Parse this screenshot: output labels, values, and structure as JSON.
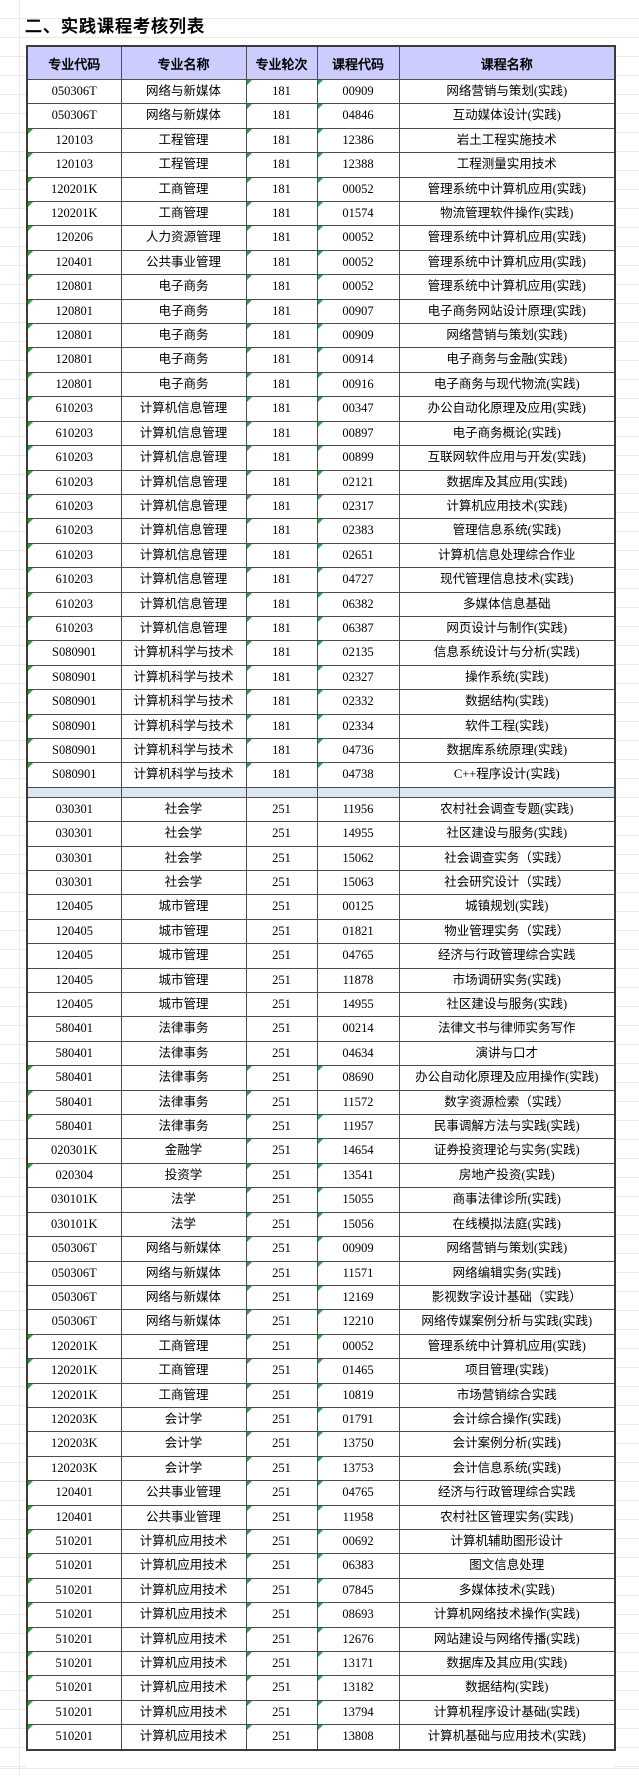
{
  "title": "二、实践课程考核列表",
  "colors": {
    "header_bg": "#ccccff",
    "separator_bg": "#dce6f1",
    "table_border": "#4d4d4d",
    "corner_indicator_green": "#2f9e44",
    "margin_gridline": "#e9e9e9"
  },
  "table": {
    "headers": [
      "专业代码",
      "专业名称",
      "专业轮次",
      "课程代码",
      "课程名称"
    ],
    "sections": [
      {
        "name": "round-181",
        "rows": [
          {
            "c": [
              "050306T",
              "网络与新媒体",
              "181",
              "00909",
              "网络营销与策划(实践)"
            ],
            "tri": [
              3,
              4
            ]
          },
          {
            "c": [
              "050306T",
              "网络与新媒体",
              "181",
              "04846",
              "互动媒体设计(实践)"
            ],
            "tri": [
              3,
              4
            ]
          },
          {
            "c": [
              "120103",
              "工程管理",
              "181",
              "12386",
              "岩土工程实施技术"
            ],
            "tri": [
              1,
              3,
              4
            ]
          },
          {
            "c": [
              "120103",
              "工程管理",
              "181",
              "12388",
              "工程测量实用技术"
            ],
            "tri": [
              1,
              3,
              4
            ]
          },
          {
            "c": [
              "120201K",
              "工商管理",
              "181",
              "00052",
              "管理系统中计算机应用(实践)"
            ],
            "tri": [
              1,
              3,
              4
            ]
          },
          {
            "c": [
              "120201K",
              "工商管理",
              "181",
              "01574",
              "物流管理软件操作(实践)"
            ],
            "tri": [
              1,
              3,
              4
            ]
          },
          {
            "c": [
              "120206",
              "人力资源管理",
              "181",
              "00052",
              "管理系统中计算机应用(实践)"
            ],
            "tri": [
              1,
              3,
              4
            ]
          },
          {
            "c": [
              "120401",
              "公共事业管理",
              "181",
              "00052",
              "管理系统中计算机应用(实践)"
            ],
            "tri": [
              1,
              3,
              4
            ]
          },
          {
            "c": [
              "120801",
              "电子商务",
              "181",
              "00052",
              "管理系统中计算机应用(实践)"
            ],
            "tri": [
              1,
              3,
              4
            ]
          },
          {
            "c": [
              "120801",
              "电子商务",
              "181",
              "00907",
              "电子商务网站设计原理(实践)"
            ],
            "tri": [
              1,
              3,
              4
            ]
          },
          {
            "c": [
              "120801",
              "电子商务",
              "181",
              "00909",
              "网络营销与策划(实践)"
            ],
            "tri": [
              1,
              3,
              4
            ]
          },
          {
            "c": [
              "120801",
              "电子商务",
              "181",
              "00914",
              "电子商务与金融(实践)"
            ],
            "tri": [
              1,
              3,
              4
            ]
          },
          {
            "c": [
              "120801",
              "电子商务",
              "181",
              "00916",
              "电子商务与现代物流(实践)"
            ],
            "tri": [
              1,
              3,
              4
            ]
          },
          {
            "c": [
              "610203",
              "计算机信息管理",
              "181",
              "00347",
              "办公自动化原理及应用(实践)"
            ],
            "tri": [
              1,
              3,
              4
            ]
          },
          {
            "c": [
              "610203",
              "计算机信息管理",
              "181",
              "00897",
              "电子商务概论(实践)"
            ],
            "tri": [
              1,
              3,
              4
            ]
          },
          {
            "c": [
              "610203",
              "计算机信息管理",
              "181",
              "00899",
              "互联网软件应用与开发(实践)"
            ],
            "tri": [
              1,
              3,
              4
            ]
          },
          {
            "c": [
              "610203",
              "计算机信息管理",
              "181",
              "02121",
              "数据库及其应用(实践)"
            ],
            "tri": [
              1,
              3,
              4
            ]
          },
          {
            "c": [
              "610203",
              "计算机信息管理",
              "181",
              "02317",
              "计算机应用技术(实践)"
            ],
            "tri": [
              1,
              3,
              4
            ]
          },
          {
            "c": [
              "610203",
              "计算机信息管理",
              "181",
              "02383",
              "管理信息系统(实践)"
            ],
            "tri": [
              1,
              3,
              4
            ]
          },
          {
            "c": [
              "610203",
              "计算机信息管理",
              "181",
              "02651",
              "计算机信息处理综合作业"
            ],
            "tri": [
              1,
              3,
              4
            ]
          },
          {
            "c": [
              "610203",
              "计算机信息管理",
              "181",
              "04727",
              "现代管理信息技术(实践)"
            ],
            "tri": [
              1,
              3,
              4
            ]
          },
          {
            "c": [
              "610203",
              "计算机信息管理",
              "181",
              "06382",
              "多媒体信息基础"
            ],
            "tri": [
              1,
              3,
              4
            ]
          },
          {
            "c": [
              "610203",
              "计算机信息管理",
              "181",
              "06387",
              "网页设计与制作(实践)"
            ],
            "tri": [
              1,
              3,
              4
            ]
          },
          {
            "c": [
              "S080901",
              "计算机科学与技术",
              "181",
              "02135",
              "信息系统设计与分析(实践)"
            ],
            "tri": [
              1,
              3,
              4
            ]
          },
          {
            "c": [
              "S080901",
              "计算机科学与技术",
              "181",
              "02327",
              "操作系统(实践)"
            ],
            "tri": [
              1,
              3,
              4
            ]
          },
          {
            "c": [
              "S080901",
              "计算机科学与技术",
              "181",
              "02332",
              "数据结构(实践)"
            ],
            "tri": [
              1,
              3,
              4
            ]
          },
          {
            "c": [
              "S080901",
              "计算机科学与技术",
              "181",
              "02334",
              "软件工程(实践)"
            ],
            "tri": [
              1,
              3,
              4
            ]
          },
          {
            "c": [
              "S080901",
              "计算机科学与技术",
              "181",
              "04736",
              "数据库系统原理(实践)"
            ],
            "tri": [
              1,
              3,
              4
            ]
          },
          {
            "c": [
              "S080901",
              "计算机科学与技术",
              "181",
              "04738",
              "C++程序设计(实践)"
            ],
            "tri": [
              1,
              3,
              4
            ]
          }
        ]
      },
      {
        "name": "round-251",
        "rows": [
          {
            "c": [
              "030301",
              "社会学",
              "251",
              "11956",
              "农村社会调查专题(实践)"
            ],
            "tri": []
          },
          {
            "c": [
              "030301",
              "社会学",
              "251",
              "14955",
              "社区建设与服务(实践)"
            ],
            "tri": []
          },
          {
            "c": [
              "030301",
              "社会学",
              "251",
              "15062",
              "社会调查实务（实践）"
            ],
            "tri": []
          },
          {
            "c": [
              "030301",
              "社会学",
              "251",
              "15063",
              "社会研究设计（实践）"
            ],
            "tri": []
          },
          {
            "c": [
              "120405",
              "城市管理",
              "251",
              "00125",
              "城镇规划(实践)"
            ],
            "tri": []
          },
          {
            "c": [
              "120405",
              "城市管理",
              "251",
              "01821",
              "物业管理实务（实践）"
            ],
            "tri": []
          },
          {
            "c": [
              "120405",
              "城市管理",
              "251",
              "04765",
              "经济与行政管理综合实践"
            ],
            "tri": []
          },
          {
            "c": [
              "120405",
              "城市管理",
              "251",
              "11878",
              "市场调研实务(实践)"
            ],
            "tri": []
          },
          {
            "c": [
              "120405",
              "城市管理",
              "251",
              "14955",
              "社区建设与服务(实践)"
            ],
            "tri": []
          },
          {
            "c": [
              "580401",
              "法律事务",
              "251",
              "00214",
              "法律文书与律师实务写作"
            ],
            "tri": []
          },
          {
            "c": [
              "580401",
              "法律事务",
              "251",
              "04634",
              "演讲与口才"
            ],
            "tri": []
          },
          {
            "c": [
              "580401",
              "法律事务",
              "251",
              "08690",
              "办公自动化原理及应用操作(实践)"
            ],
            "tri": [
              1,
              3,
              4
            ]
          },
          {
            "c": [
              "580401",
              "法律事务",
              "251",
              "11572",
              "数字资源检索（实践）"
            ],
            "tri": [
              1,
              3
            ]
          },
          {
            "c": [
              "580401",
              "法律事务",
              "251",
              "11957",
              "民事调解方法与实践(实践)"
            ],
            "tri": [
              1,
              3,
              4
            ]
          },
          {
            "c": [
              "020301K",
              "金融学",
              "251",
              "14654",
              "证券投资理论与实务(实践)"
            ],
            "tri": [
              3,
              4
            ]
          },
          {
            "c": [
              "020304",
              "投资学",
              "251",
              "13541",
              "房地产投资(实践)"
            ],
            "tri": [
              1,
              3,
              4
            ]
          },
          {
            "c": [
              "030101K",
              "法学",
              "251",
              "15055",
              "商事法律诊所(实践)"
            ],
            "tri": [
              3,
              4
            ]
          },
          {
            "c": [
              "030101K",
              "法学",
              "251",
              "15056",
              "在线模拟法庭(实践)"
            ],
            "tri": [
              3,
              4
            ]
          },
          {
            "c": [
              "050306T",
              "网络与新媒体",
              "251",
              "00909",
              "网络营销与策划(实践)"
            ],
            "tri": [
              3,
              4
            ]
          },
          {
            "c": [
              "050306T",
              "网络与新媒体",
              "251",
              "11571",
              "网络编辑实务(实践)"
            ],
            "tri": [
              3,
              4
            ]
          },
          {
            "c": [
              "050306T",
              "网络与新媒体",
              "251",
              "12169",
              "影视数字设计基础（实践）"
            ],
            "tri": [
              3,
              4
            ]
          },
          {
            "c": [
              "050306T",
              "网络与新媒体",
              "251",
              "12210",
              "网络传媒案例分析与实践(实践)"
            ],
            "tri": [
              3,
              4
            ]
          },
          {
            "c": [
              "120201K",
              "工商管理",
              "251",
              "00052",
              "管理系统中计算机应用(实践)"
            ],
            "tri": [
              1,
              3,
              4
            ]
          },
          {
            "c": [
              "120201K",
              "工商管理",
              "251",
              "01465",
              "项目管理(实践)"
            ],
            "tri": [
              1,
              3,
              4
            ]
          },
          {
            "c": [
              "120201K",
              "工商管理",
              "251",
              "10819",
              "市场营销综合实践"
            ],
            "tri": [
              1,
              3,
              4
            ]
          },
          {
            "c": [
              "120203K",
              "会计学",
              "251",
              "01791",
              "会计综合操作(实践)"
            ],
            "tri": [
              3,
              4
            ]
          },
          {
            "c": [
              "120203K",
              "会计学",
              "251",
              "13750",
              "会计案例分析(实践)"
            ],
            "tri": [
              3,
              4
            ]
          },
          {
            "c": [
              "120203K",
              "会计学",
              "251",
              "13753",
              "会计信息系统(实践)"
            ],
            "tri": [
              3,
              4
            ]
          },
          {
            "c": [
              "120401",
              "公共事业管理",
              "251",
              "04765",
              "经济与行政管理综合实践"
            ],
            "tri": [
              1,
              3,
              4
            ]
          },
          {
            "c": [
              "120401",
              "公共事业管理",
              "251",
              "11958",
              "农村社区管理实务(实践)"
            ],
            "tri": [
              1,
              3,
              4
            ]
          },
          {
            "c": [
              "510201",
              "计算机应用技术",
              "251",
              "00692",
              "计算机辅助图形设计"
            ],
            "tri": [
              1,
              3,
              4
            ]
          },
          {
            "c": [
              "510201",
              "计算机应用技术",
              "251",
              "06383",
              "图文信息处理"
            ],
            "tri": [
              1,
              3,
              4
            ]
          },
          {
            "c": [
              "510201",
              "计算机应用技术",
              "251",
              "07845",
              "多媒体技术(实践)"
            ],
            "tri": [
              1,
              3,
              4
            ]
          },
          {
            "c": [
              "510201",
              "计算机应用技术",
              "251",
              "08693",
              "计算机网络技术操作(实践)"
            ],
            "tri": [
              1,
              3,
              4
            ]
          },
          {
            "c": [
              "510201",
              "计算机应用技术",
              "251",
              "12676",
              "网站建设与网络传播(实践)"
            ],
            "tri": [
              1,
              3,
              4
            ]
          },
          {
            "c": [
              "510201",
              "计算机应用技术",
              "251",
              "13171",
              "数据库及其应用(实践)"
            ],
            "tri": [
              1,
              3,
              4
            ]
          },
          {
            "c": [
              "510201",
              "计算机应用技术",
              "251",
              "13182",
              "数据结构(实践)"
            ],
            "tri": [
              1,
              3,
              4
            ]
          },
          {
            "c": [
              "510201",
              "计算机应用技术",
              "251",
              "13794",
              "计算机程序设计基础(实践)"
            ],
            "tri": [
              1,
              3,
              4
            ]
          },
          {
            "c": [
              "510201",
              "计算机应用技术",
              "251",
              "13808",
              "计算机基础与应用技术(实践)"
            ],
            "tri": [
              1,
              3,
              4
            ]
          }
        ]
      }
    ]
  }
}
